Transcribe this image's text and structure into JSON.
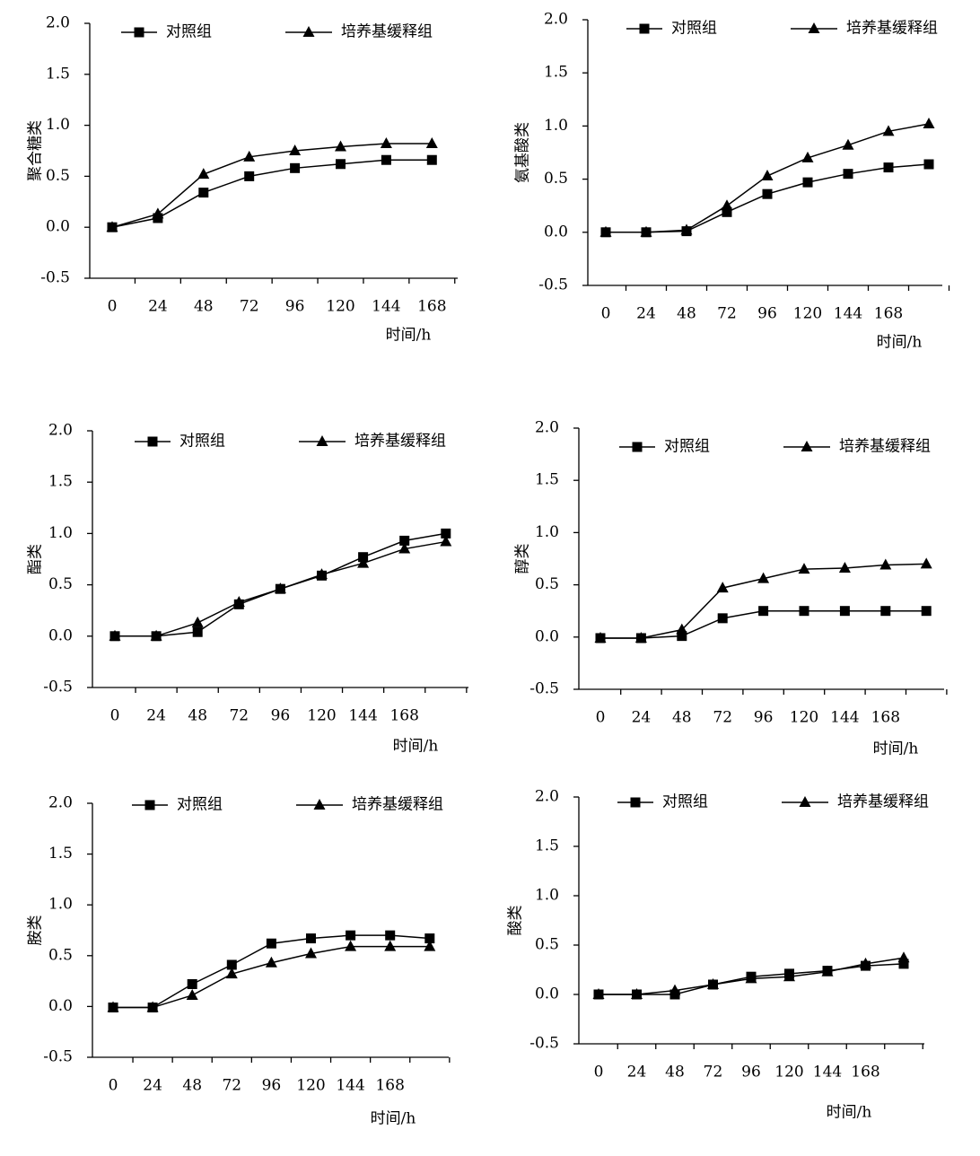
{
  "chart_data": [
    {
      "type": "line",
      "ylabel": "聚合糖类",
      "xlabel": "时间/h",
      "categories": [
        "0",
        "24",
        "48",
        "72",
        "96",
        "120",
        "144",
        "168"
      ],
      "ylim": [
        -0.5,
        2.0
      ],
      "yticks": [
        -0.5,
        {
          "value": 0,
          "label": "0.0"
        },
        0.5,
        {
          "value": 1,
          "label": "1.0"
        },
        1.5,
        {
          "value": 2,
          "label": "2.0"
        }
      ],
      "series": [
        {
          "name": "对照组",
          "color": "#000000",
          "marker": "square",
          "values": [
            0,
            0.09,
            0.34,
            0.5,
            0.58,
            0.62,
            0.66,
            0.66
          ]
        },
        {
          "name": "培养基缓释组",
          "color": "#000000",
          "marker": "triangle",
          "values": [
            0,
            0.13,
            0.52,
            0.69,
            0.75,
            0.79,
            0.82,
            0.82
          ]
        }
      ]
    },
    {
      "type": "line",
      "ylabel": "氨基酸类",
      "xlabel": "时间/h",
      "categories": [
        "0",
        "24",
        "48",
        "72",
        "96",
        "120",
        "144",
        "168",
        null
      ],
      "ylim": [
        -0.5,
        2.0
      ],
      "yticks": [
        -0.5,
        {
          "value": 0,
          "label": "0.0"
        },
        0.5,
        {
          "value": 1,
          "label": "1.0"
        },
        1.5,
        {
          "value": 2,
          "label": "2.0"
        }
      ],
      "series": [
        {
          "name": "对照组",
          "color": "#000000",
          "marker": "square",
          "values": [
            0,
            0,
            0.01,
            0.19,
            0.36,
            0.47,
            0.55,
            0.61,
            0.64
          ]
        },
        {
          "name": "培养基缓释组",
          "color": "#000000",
          "marker": "triangle",
          "values": [
            0,
            0,
            0.02,
            0.25,
            0.53,
            0.7,
            0.82,
            0.95,
            1.02
          ]
        }
      ]
    },
    {
      "type": "line",
      "ylabel": "酯类",
      "xlabel": "时间/h",
      "categories": [
        "0",
        "24",
        "48",
        "72",
        "96",
        "120",
        "144",
        "168",
        null
      ],
      "ylim": [
        -0.5,
        2.0
      ],
      "yticks": [
        -0.5,
        {
          "value": 0,
          "label": "0.0"
        },
        0.5,
        {
          "value": 1,
          "label": "1.0"
        },
        1.5,
        {
          "value": 2,
          "label": "2.0"
        }
      ],
      "series": [
        {
          "name": "对照组",
          "color": "#000000",
          "marker": "square",
          "values": [
            0,
            0,
            0.04,
            0.31,
            0.46,
            0.59,
            0.77,
            0.93,
            1.0
          ]
        },
        {
          "name": "培养基缓释组",
          "color": "#000000",
          "marker": "triangle",
          "values": [
            0,
            0,
            0.13,
            0.33,
            0.46,
            0.6,
            0.71,
            0.85,
            0.92
          ]
        }
      ]
    },
    {
      "type": "line",
      "ylabel": "醇类",
      "xlabel": "时间/h",
      "categories": [
        "0",
        "24",
        "48",
        "72",
        "96",
        "120",
        "144",
        "168",
        null
      ],
      "ylim": [
        -0.5,
        2.0
      ],
      "yticks": [
        -0.5,
        {
          "value": 0,
          "label": "0.0"
        },
        0.5,
        {
          "value": 1,
          "label": "1.0"
        },
        1.5,
        {
          "value": 2,
          "label": "2.0"
        }
      ],
      "series": [
        {
          "name": "对照组",
          "color": "#000000",
          "marker": "square",
          "values": [
            -0.01,
            -0.01,
            0.01,
            0.18,
            0.25,
            0.25,
            0.25,
            0.25,
            0.25
          ]
        },
        {
          "name": "培养基缓释组",
          "color": "#000000",
          "marker": "triangle",
          "values": [
            -0.01,
            -0.01,
            0.07,
            0.47,
            0.56,
            0.65,
            0.66,
            0.69,
            0.7
          ]
        }
      ]
    },
    {
      "type": "line",
      "ylabel": "胺类",
      "xlabel": "时间/h",
      "categories": [
        "0",
        "24",
        "48",
        "72",
        "96",
        "120",
        "144",
        "168",
        null
      ],
      "ylim": [
        -0.5,
        2.0
      ],
      "yticks": [
        -0.5,
        {
          "value": 0,
          "label": "0.0"
        },
        0.5,
        {
          "value": 1,
          "label": "1.0"
        },
        1.5,
        {
          "value": 2,
          "label": "2.0"
        }
      ],
      "series": [
        {
          "name": "对照组",
          "color": "#000000",
          "marker": "square",
          "values": [
            -0.01,
            -0.01,
            0.22,
            0.41,
            0.62,
            0.67,
            0.7,
            0.7,
            0.67
          ]
        },
        {
          "name": "培养基缓释组",
          "color": "#000000",
          "marker": "triangle",
          "values": [
            -0.01,
            -0.01,
            0.11,
            0.32,
            0.43,
            0.52,
            0.59,
            0.59,
            0.59
          ]
        }
      ]
    },
    {
      "type": "line",
      "ylabel": "酸类",
      "xlabel": "时间/h",
      "categories": [
        "0",
        "24",
        "48",
        "72",
        "96",
        "120",
        "144",
        "168",
        null
      ],
      "ylim": [
        -0.5,
        2.0
      ],
      "yticks": [
        -0.5,
        {
          "value": 0,
          "label": "0.0"
        },
        0.5,
        {
          "value": 1,
          "label": "1.0"
        },
        1.5,
        {
          "value": 2,
          "label": "2.0"
        }
      ],
      "series": [
        {
          "name": "对照组",
          "color": "#000000",
          "marker": "square",
          "values": [
            0,
            0,
            0,
            0.1,
            0.18,
            0.21,
            0.24,
            0.29,
            0.31
          ]
        },
        {
          "name": "培养基缓释组",
          "color": "#000000",
          "marker": "triangle",
          "values": [
            0,
            0,
            0.04,
            0.1,
            0.16,
            0.18,
            0.23,
            0.31,
            0.37
          ]
        }
      ]
    }
  ]
}
